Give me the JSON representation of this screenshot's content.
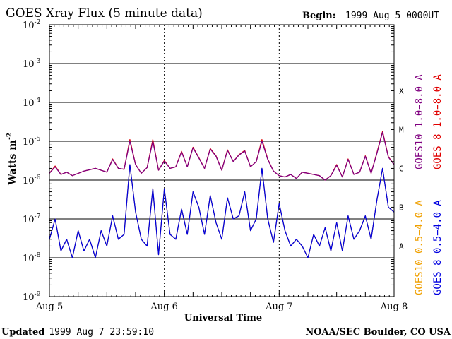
{
  "chart_data": {
    "type": "line",
    "title": "GOES Xray Flux (5 minute data)",
    "begin_label": "Begin:",
    "begin_value": "1999 Aug 5 0000UT",
    "ylabel": "Watts m",
    "ylabel_sup": "-2",
    "xlabel": "Universal Time",
    "yscale": "log",
    "ylim": [
      1e-09,
      0.01
    ],
    "y_ticks": [
      {
        "base": "10",
        "exp": "-2",
        "value": 0.01
      },
      {
        "base": "10",
        "exp": "-3",
        "value": 0.001
      },
      {
        "base": "10",
        "exp": "-4",
        "value": 0.0001
      },
      {
        "base": "10",
        "exp": "-5",
        "value": 1e-05
      },
      {
        "base": "10",
        "exp": "-6",
        "value": 1e-06
      },
      {
        "base": "10",
        "exp": "-7",
        "value": 1e-07
      },
      {
        "base": "10",
        "exp": "-8",
        "value": 1e-08
      },
      {
        "base": "10",
        "exp": "-9",
        "value": 1e-09
      }
    ],
    "x_unit": "day",
    "xlim": [
      0,
      3
    ],
    "x_ticks": [
      {
        "label": "Aug 5",
        "value": 0
      },
      {
        "label": "Aug 6",
        "value": 1
      },
      {
        "label": "Aug 7",
        "value": 2
      },
      {
        "label": "Aug 8",
        "value": 3
      }
    ],
    "flare_classes": [
      {
        "label": "X",
        "value": 0.0002
      },
      {
        "label": "M",
        "value": 2e-05
      },
      {
        "label": "C",
        "value": 2e-06
      },
      {
        "label": "B",
        "value": 2e-07
      },
      {
        "label": "A",
        "value": 2e-08
      }
    ],
    "legend": [
      {
        "text": "GOES10 1.0−8.0 A",
        "color": "#800080"
      },
      {
        "text": "GOES 8 1.0−8.0 A",
        "color": "#e00000"
      },
      {
        "text": "GOES10 0.5−4.0 A",
        "color": "#f0a000"
      },
      {
        "text": "GOES 8 0.5−4.0 A",
        "color": "#0000e0"
      }
    ],
    "series": [
      {
        "name": "GOES 8 1.0−8.0 A",
        "color": "#e00000",
        "x": [
          0.0,
          0.05,
          0.1,
          0.15,
          0.2,
          0.3,
          0.4,
          0.5,
          0.55,
          0.6,
          0.65,
          0.7,
          0.75,
          0.8,
          0.85,
          0.9,
          0.95,
          1.0,
          1.05,
          1.1,
          1.15,
          1.2,
          1.25,
          1.3,
          1.35,
          1.4,
          1.45,
          1.5,
          1.55,
          1.6,
          1.65,
          1.7,
          1.75,
          1.8,
          1.85,
          1.9,
          1.95,
          2.0,
          2.05,
          2.1,
          2.15,
          2.2,
          2.3,
          2.35,
          2.4,
          2.45,
          2.5,
          2.55,
          2.6,
          2.65,
          2.7,
          2.75,
          2.8,
          2.85,
          2.9,
          2.95,
          3.0
        ],
        "y": [
          1.5e-06,
          2.3e-06,
          1.4e-06,
          1.6e-06,
          1.3e-06,
          1.7e-06,
          2e-06,
          1.6e-06,
          3.5e-06,
          2e-06,
          1.9e-06,
          1.1e-05,
          2.5e-06,
          1.5e-06,
          2.1e-06,
          1.1e-05,
          1.8e-06,
          3.2e-06,
          2e-06,
          2.2e-06,
          5.5e-06,
          2.2e-06,
          7e-06,
          3.8e-06,
          2e-06,
          6.5e-06,
          4.2e-06,
          1.8e-06,
          6e-06,
          3e-06,
          4.5e-06,
          5.8e-06,
          2.2e-06,
          3e-06,
          1.1e-05,
          3.5e-06,
          1.7e-06,
          1.3e-06,
          1.2e-06,
          1.4e-06,
          1.1e-06,
          1.6e-06,
          1.4e-06,
          1.3e-06,
          1e-06,
          1.3e-06,
          2.5e-06,
          1.2e-06,
          3.5e-06,
          1.4e-06,
          1.6e-06,
          4.2e-06,
          1.5e-06,
          5e-06,
          1.8e-05,
          4e-06,
          2.5e-06
        ]
      },
      {
        "name": "GOES10 1.0−8.0 A",
        "color": "#800080",
        "x": [
          0.0,
          0.05,
          0.1,
          0.15,
          0.2,
          0.3,
          0.4,
          0.5,
          0.55,
          0.6,
          0.65,
          0.7,
          0.75,
          0.8,
          0.85,
          0.9,
          0.95,
          1.0,
          1.05,
          1.1,
          1.15,
          1.2,
          1.25,
          1.3,
          1.35,
          1.4,
          1.45,
          1.5,
          1.55,
          1.6,
          1.65,
          1.7,
          1.75,
          1.8,
          1.85,
          1.9,
          1.95,
          2.0,
          2.05,
          2.1,
          2.15,
          2.2,
          2.3,
          2.35,
          2.4,
          2.45,
          2.5,
          2.55,
          2.6,
          2.65,
          2.7,
          2.75,
          2.8,
          2.85,
          2.9,
          2.95,
          3.0
        ],
        "y": [
          1.5e-06,
          2.2e-06,
          1.4e-06,
          1.6e-06,
          1.3e-06,
          1.7e-06,
          2e-06,
          1.6e-06,
          3.4e-06,
          2e-06,
          1.9e-06,
          1e-05,
          2.5e-06,
          1.5e-06,
          2.1e-06,
          1e-05,
          1.8e-06,
          3.1e-06,
          2e-06,
          2.2e-06,
          5.3e-06,
          2.2e-06,
          6.8e-06,
          3.7e-06,
          2e-06,
          6.3e-06,
          4.1e-06,
          1.8e-06,
          5.8e-06,
          3e-06,
          4.4e-06,
          5.6e-06,
          2.2e-06,
          3e-06,
          1e-05,
          3.4e-06,
          1.7e-06,
          1.3e-06,
          1.2e-06,
          1.4e-06,
          1.1e-06,
          1.6e-06,
          1.4e-06,
          1.3e-06,
          1e-06,
          1.3e-06,
          2.4e-06,
          1.2e-06,
          3.4e-06,
          1.4e-06,
          1.6e-06,
          4.1e-06,
          1.5e-06,
          4.8e-06,
          1.7e-05,
          3.9e-06,
          2.5e-06
        ]
      },
      {
        "name": "GOES10 0.5−4.0 A",
        "color": "#f0a000",
        "x": [
          0.0,
          0.05,
          0.1,
          0.15,
          0.2,
          0.25,
          0.3,
          0.35,
          0.4,
          0.45,
          0.5,
          0.55,
          0.6,
          0.65,
          0.7,
          0.75,
          0.8,
          0.85,
          0.9,
          0.95,
          1.0,
          1.05,
          1.1,
          1.15,
          1.2,
          1.25,
          1.3,
          1.35,
          1.4,
          1.45,
          1.5,
          1.55,
          1.6,
          1.65,
          1.7,
          1.75,
          1.8,
          1.85,
          1.9,
          1.95,
          2.0,
          2.05,
          2.1,
          2.15,
          2.2,
          2.25,
          2.3,
          2.35,
          2.4,
          2.45,
          2.5,
          2.55,
          2.6,
          2.65,
          2.7,
          2.75,
          2.8,
          2.85,
          2.9,
          2.95,
          3.0
        ],
        "y": [
          3e-08,
          1e-07,
          1.5e-08,
          3e-08,
          1e-08,
          5e-08,
          1.5e-08,
          3e-08,
          1e-08,
          5e-08,
          2e-08,
          1.2e-07,
          3e-08,
          4e-08,
          2.5e-06,
          1.5e-07,
          3e-08,
          2e-08,
          6e-07,
          1.2e-08,
          6e-07,
          4e-08,
          3e-08,
          1.8e-07,
          4e-08,
          5e-07,
          2e-07,
          4e-08,
          4e-07,
          8e-08,
          3e-08,
          3.5e-07,
          1e-07,
          1.2e-07,
          5e-07,
          5e-08,
          1e-07,
          2e-06,
          1e-07,
          2.5e-08,
          2.5e-07,
          5e-08,
          2e-08,
          3e-08,
          2e-08,
          1e-08,
          4e-08,
          2e-08,
          6e-08,
          1.5e-08,
          8e-08,
          1.5e-08,
          1.2e-07,
          3e-08,
          5e-08,
          1.2e-07,
          3e-08,
          3e-07,
          2e-06,
          2e-07,
          1.5e-07
        ]
      },
      {
        "name": "GOES 8 0.5−4.0 A",
        "color": "#0000e0",
        "x": [
          0.0,
          0.05,
          0.1,
          0.15,
          0.2,
          0.25,
          0.3,
          0.35,
          0.4,
          0.45,
          0.5,
          0.55,
          0.6,
          0.65,
          0.7,
          0.75,
          0.8,
          0.85,
          0.9,
          0.95,
          1.0,
          1.05,
          1.1,
          1.15,
          1.2,
          1.25,
          1.3,
          1.35,
          1.4,
          1.45,
          1.5,
          1.55,
          1.6,
          1.65,
          1.7,
          1.75,
          1.8,
          1.85,
          1.9,
          1.95,
          2.0,
          2.05,
          2.1,
          2.15,
          2.2,
          2.25,
          2.3,
          2.35,
          2.4,
          2.45,
          2.5,
          2.55,
          2.6,
          2.65,
          2.7,
          2.75,
          2.8,
          2.85,
          2.9,
          2.95,
          3.0
        ],
        "y": [
          3e-08,
          1e-07,
          1.5e-08,
          3e-08,
          1e-08,
          5e-08,
          1.5e-08,
          3e-08,
          1e-08,
          5e-08,
          2e-08,
          1.2e-07,
          3e-08,
          4e-08,
          2.5e-06,
          1.5e-07,
          3e-08,
          2e-08,
          6e-07,
          1.2e-08,
          6e-07,
          4e-08,
          3e-08,
          1.8e-07,
          4e-08,
          5e-07,
          2e-07,
          4e-08,
          4e-07,
          8e-08,
          3e-08,
          3.5e-07,
          1e-07,
          1.2e-07,
          5e-07,
          5e-08,
          1e-07,
          2e-06,
          1e-07,
          2.5e-08,
          2.5e-07,
          5e-08,
          2e-08,
          3e-08,
          2e-08,
          1e-08,
          4e-08,
          2e-08,
          6e-08,
          1.5e-08,
          8e-08,
          1.5e-08,
          1.2e-07,
          3e-08,
          5e-08,
          1.2e-07,
          3e-08,
          3e-07,
          2e-06,
          2e-07,
          1.5e-07
        ]
      }
    ],
    "footer_left_bold": "Updated",
    "footer_left": "1999 Aug  7 23:59:10",
    "footer_right": "NOAA/SEC Boulder, CO USA"
  }
}
